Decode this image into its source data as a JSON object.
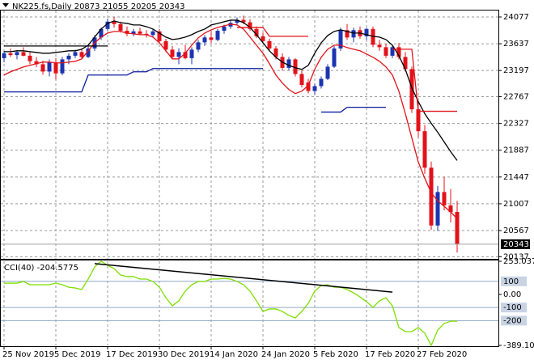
{
  "chart_data": [
    {
      "type": "candlestick",
      "title": "NK225.fs,Daily",
      "title_values": [
        20873,
        21055,
        20205,
        20343
      ],
      "categories": [
        "25 Nov 2019",
        null,
        null,
        null,
        null,
        null,
        null,
        null,
        "5 Dec 2019",
        null,
        null,
        null,
        null,
        null,
        null,
        null,
        "17 Dec 2019",
        null,
        null,
        null,
        null,
        null,
        null,
        null,
        "30 Dec 2019",
        null,
        null,
        null,
        null,
        null,
        null,
        null,
        "14 Jan 2020",
        null,
        null,
        null,
        null,
        null,
        null,
        null,
        "24 Jan 2020",
        null,
        null,
        null,
        null,
        null,
        null,
        null,
        "5 Feb 2020",
        null,
        null,
        null,
        null,
        null,
        null,
        null,
        "17 Feb 2020",
        null,
        null,
        null,
        null,
        null,
        null,
        null,
        "27 Feb 2020",
        null,
        null,
        null,
        null,
        null,
        null
      ],
      "open": [
        23400,
        23480,
        23450,
        23500,
        23440,
        23350,
        23300,
        23180,
        23330,
        23150,
        23380,
        23440,
        23500,
        23420,
        23560,
        23740,
        23880,
        24000,
        23960,
        23850,
        23800,
        23840,
        23800,
        23780,
        23840,
        23680,
        23540,
        23420,
        23500,
        23400,
        23540,
        23660,
        23740,
        23700,
        23850,
        23920,
        23980,
        24030,
        23990,
        23880,
        23760,
        23680,
        23560,
        23420,
        23240,
        23380,
        23140,
        23000,
        22860,
        22940,
        23060,
        23260,
        23560,
        23860,
        23740,
        23860,
        23760,
        23880,
        23620,
        23580,
        23440,
        23580,
        23420,
        23220,
        22560,
        22200,
        21600,
        20650,
        21200,
        20980,
        20873
      ],
      "high": [
        23520,
        23560,
        23530,
        23580,
        23500,
        23420,
        23360,
        23380,
        23400,
        23420,
        23480,
        23540,
        23560,
        23600,
        23780,
        23900,
        24050,
        24080,
        24000,
        23920,
        23880,
        23900,
        23860,
        23870,
        23880,
        23720,
        23600,
        23560,
        23620,
        23580,
        23700,
        23780,
        23840,
        23880,
        23950,
        24020,
        24070,
        24100,
        24040,
        23920,
        23820,
        23720,
        23600,
        23480,
        23420,
        23400,
        23200,
        23060,
        22980,
        23100,
        23300,
        23600,
        23900,
        23960,
        23900,
        23920,
        23900,
        23920,
        23700,
        23640,
        23620,
        23650,
        23500,
        23260,
        22700,
        22300,
        21700,
        21300,
        21450,
        21250,
        21055
      ],
      "low": [
        23330,
        23420,
        23380,
        23430,
        23300,
        23250,
        23130,
        23100,
        23050,
        23120,
        23300,
        23400,
        23380,
        23400,
        23520,
        23700,
        23850,
        23900,
        23820,
        23760,
        23760,
        23780,
        23740,
        23750,
        23640,
        23500,
        23380,
        23300,
        23380,
        23300,
        23500,
        23600,
        23650,
        23680,
        23800,
        23880,
        23940,
        23960,
        23850,
        23730,
        23640,
        23520,
        23380,
        23200,
        23200,
        23100,
        22920,
        22820,
        22800,
        22900,
        23040,
        23240,
        23520,
        23700,
        23660,
        23720,
        23700,
        23580,
        23520,
        23400,
        23400,
        23380,
        23180,
        22500,
        22100,
        21500,
        20580,
        20560,
        20900,
        20700,
        20205
      ],
      "close": [
        23480,
        23450,
        23500,
        23440,
        23350,
        23300,
        23180,
        23330,
        23150,
        23380,
        23440,
        23500,
        23420,
        23560,
        23740,
        23880,
        24000,
        23960,
        23850,
        23800,
        23840,
        23800,
        23780,
        23840,
        23680,
        23540,
        23420,
        23500,
        23400,
        23540,
        23660,
        23740,
        23700,
        23850,
        23920,
        23980,
        24030,
        23990,
        23880,
        23760,
        23680,
        23560,
        23420,
        23240,
        23380,
        23140,
        22960,
        22860,
        22940,
        23060,
        23260,
        23560,
        23860,
        23740,
        23860,
        23760,
        23880,
        23620,
        23580,
        23440,
        23580,
        23420,
        23220,
        22560,
        22200,
        21600,
        20650,
        21200,
        20980,
        20870,
        20343
      ],
      "up_color": "#1c34b0",
      "down_color": "#e3121a",
      "series": [
        {
          "color": "#000000",
          "values": [
            23507,
            23507,
            23521,
            23521,
            23507,
            23494,
            23481,
            23481,
            23494,
            23507,
            23521,
            23521,
            23547,
            23613,
            23746,
            23878,
            23971,
            24011,
            23984,
            23971,
            23945,
            23945,
            23918,
            23878,
            23812,
            23746,
            23706,
            23719,
            23746,
            23786,
            23839,
            23878,
            23945,
            23971,
            23998,
            24024,
            24024,
            23984,
            23905,
            23786,
            23653,
            23521,
            23415,
            23335,
            23282,
            23242,
            23216,
            23282,
            23481,
            23653,
            23772,
            23839,
            23865,
            23839,
            23812,
            23812,
            23786,
            23759,
            23746,
            23706,
            23613,
            23441,
            23216,
            22911,
            22686,
            22487,
            22328,
            22182,
            22023,
            21864,
            21719
          ]
        },
        {
          "color": "#e3121a",
          "values": [
            23123,
            23176,
            23216,
            23256,
            23282,
            23309,
            23335,
            23335,
            23322,
            23322,
            23335,
            23348,
            23388,
            23521,
            23653,
            23746,
            23812,
            23839,
            23839,
            23812,
            23799,
            23786,
            23786,
            23746,
            23653,
            23521,
            23388,
            23388,
            23481,
            23613,
            23733,
            23812,
            23865,
            23905,
            23931,
            23958,
            23945,
            23878,
            23746,
            23613,
            23481,
            23309,
            23123,
            22991,
            22885,
            22818,
            22858,
            22951,
            23216,
            23415,
            23547,
            23613,
            23613,
            23574,
            23547,
            23521,
            23468,
            23415,
            23348,
            23256,
            23123,
            22858,
            22487,
            22090,
            21692,
            21427,
            21189,
            21056,
            20964,
            20871,
            20765
          ]
        },
        {
          "color": "#0a1c9e",
          "values": [
            22845,
            22845,
            22845,
            22845,
            22845,
            22845,
            22845,
            22845,
            22845,
            22845,
            22845,
            22845,
            22845,
            23123,
            23123,
            23123,
            23123,
            23123,
            23123,
            23123,
            23176,
            23176,
            23176,
            23229,
            23229,
            23229,
            23229,
            23229,
            23229,
            23229,
            23229,
            23229,
            23229,
            23229,
            23229,
            23229,
            23229,
            23229,
            23229,
            23229,
            23229,
            null,
            null,
            null,
            null,
            null,
            null,
            null,
            null,
            22514,
            22514,
            22514,
            22514,
            22593,
            22593,
            22593,
            22593,
            22593,
            22593,
            22593,
            null,
            null,
            null,
            null,
            null,
            null,
            null,
            null,
            null,
            null,
            null
          ]
        },
        {
          "color": "#e3121a",
          "values": [
            null,
            null,
            null,
            null,
            null,
            null,
            null,
            null,
            null,
            null,
            null,
            null,
            null,
            null,
            null,
            null,
            null,
            null,
            null,
            null,
            null,
            null,
            null,
            null,
            null,
            null,
            null,
            null,
            null,
            null,
            null,
            null,
            null,
            null,
            null,
            null,
            23905,
            23905,
            23905,
            23905,
            23905,
            23759,
            23759,
            23759,
            23759,
            23759,
            23759,
            23759,
            null,
            null,
            null,
            null,
            null,
            null,
            null,
            null,
            null,
            null,
            null,
            null,
            23547,
            23547,
            23547,
            23547,
            22527,
            22527,
            22527,
            22527,
            22527,
            22527,
            22527
          ]
        },
        {
          "color": "#000000",
          "values": [
            23600,
            23600,
            23600,
            23600,
            23600,
            23600,
            23600,
            23600,
            23600,
            23600,
            23600,
            23600,
            23600,
            23600,
            23600,
            23600,
            23600,
            null,
            null,
            null,
            null,
            null,
            null,
            null,
            null,
            null,
            null,
            null,
            null,
            null,
            null,
            null,
            null,
            null,
            null,
            null,
            null,
            null,
            null,
            null,
            null,
            null,
            null,
            null,
            null,
            null,
            null,
            null,
            null,
            null,
            null,
            null,
            null,
            null,
            null,
            null,
            null,
            null,
            null,
            null,
            null,
            null,
            null,
            null,
            null,
            null,
            null,
            null,
            null,
            null,
            null
          ]
        }
      ],
      "ylim": [
        20102,
        24183
      ],
      "yticks": [
        24077,
        23637,
        23197,
        22767,
        22327,
        21887,
        21447,
        21007,
        20567,
        20137
      ],
      "last_price": 20343,
      "grid": true
    },
    {
      "type": "line",
      "title": "CCI(40)",
      "title_value": -204.5775,
      "series": [
        {
          "color": "#7ee000",
          "values": [
            86,
            86,
            86,
            99,
            74,
            74,
            74,
            74,
            86,
            74,
            55,
            49,
            37,
            117,
            210,
            253.0378,
            222,
            197,
            148,
            136,
            136,
            117,
            117,
            99,
            55,
            -25,
            -87,
            -49,
            25,
            74,
            99,
            99,
            117,
            117,
            123,
            117,
            99,
            74,
            25,
            -49,
            -130,
            -111,
            -111,
            -130,
            -161,
            -179,
            -130,
            -68,
            25,
            68,
            74,
            55,
            55,
            37,
            12,
            -19,
            -56,
            -99,
            -49,
            -25,
            -87,
            -253,
            -284,
            -284,
            -253,
            -296,
            -389.1,
            -272,
            -222,
            -204.5775,
            -204.5775
          ]
        }
      ],
      "trendline": {
        "color": "#000000",
        "x": [
          14,
          60
        ],
        "values": [
          235,
          18
        ]
      },
      "levels": [
        100,
        -100,
        -200
      ],
      "ylim": [
        -389.1,
        253.0378
      ],
      "yticks": [
        253.0378,
        {
          "value": 0,
          "label": "0.00"
        },
        {
          "value": -389.1,
          "label": "-389.100"
        }
      ],
      "grid": true
    }
  ]
}
